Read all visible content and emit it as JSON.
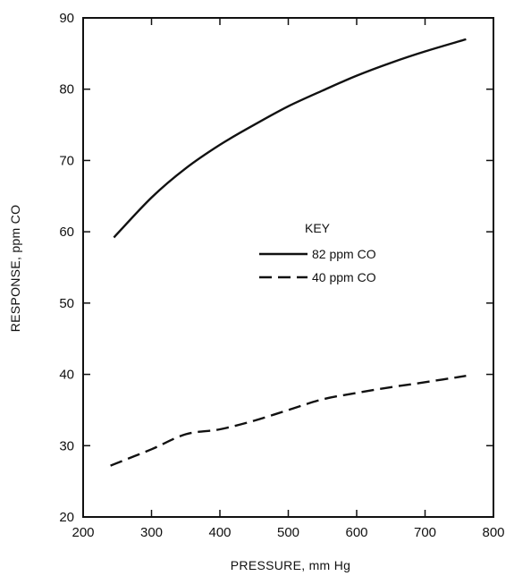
{
  "chart_data": {
    "type": "line",
    "xlabel": "PRESSURE,  mm Hg",
    "ylabel": "RESPONSE,  ppm CO",
    "xlim": [
      200,
      800
    ],
    "ylim": [
      20,
      90
    ],
    "xticks": [
      200,
      300,
      400,
      500,
      600,
      700,
      800
    ],
    "yticks": [
      20,
      30,
      40,
      50,
      60,
      70,
      80,
      90
    ],
    "grid": false,
    "legend": {
      "title": "KEY",
      "placement": "center-right"
    },
    "series": [
      {
        "name": "82 ppm  CO",
        "style": "solid",
        "x": [
          245,
          300,
          350,
          400,
          450,
          500,
          550,
          600,
          650,
          700,
          760
        ],
        "y": [
          59.2,
          64.8,
          68.9,
          72.2,
          75.0,
          77.6,
          79.8,
          81.9,
          83.7,
          85.3,
          87.0
        ]
      },
      {
        "name": "40 ppm  CO",
        "style": "dashed",
        "x": [
          240,
          300,
          350,
          400,
          450,
          500,
          550,
          600,
          650,
          700,
          760
        ],
        "y": [
          27.2,
          29.5,
          31.6,
          32.3,
          33.5,
          35.0,
          36.5,
          37.4,
          38.2,
          38.9,
          39.8
        ]
      }
    ],
    "colors": {
      "line": "#111111",
      "axis": "#111111"
    }
  }
}
